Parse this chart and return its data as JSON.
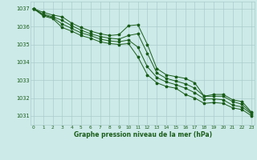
{
  "background_color": "#cceae8",
  "grid_color": "#aacccc",
  "line_color": "#1a5c1a",
  "xlabel": "Graphe pression niveau de la mer (hPa)",
  "xlabel_color": "#1a5c1a",
  "ylabel_color": "#1a5c1a",
  "xlim": [
    -0.3,
    23.3
  ],
  "ylim": [
    1030.5,
    1037.4
  ],
  "yticks": [
    1031,
    1032,
    1033,
    1034,
    1035,
    1036,
    1037
  ],
  "xticks": [
    0,
    1,
    2,
    3,
    4,
    5,
    6,
    7,
    8,
    9,
    10,
    11,
    12,
    13,
    14,
    15,
    16,
    17,
    18,
    19,
    20,
    21,
    22,
    23
  ],
  "series": [
    {
      "x": [
        0,
        1,
        2,
        3,
        4,
        5,
        6,
        7,
        8,
        9,
        10,
        11,
        12,
        13,
        14,
        15,
        16,
        17,
        18,
        19,
        20,
        21,
        22,
        23
      ],
      "y": [
        1037.0,
        1036.8,
        1036.65,
        1036.55,
        1036.2,
        1035.95,
        1035.75,
        1035.6,
        1035.5,
        1035.55,
        1036.05,
        1036.1,
        1035.0,
        1033.65,
        1033.3,
        1033.2,
        1033.1,
        1032.85,
        1032.1,
        1032.2,
        1032.2,
        1031.9,
        1031.8,
        1031.2
      ]
    },
    {
      "x": [
        0,
        1,
        2,
        3,
        4,
        5,
        6,
        7,
        8,
        9,
        10,
        11,
        12,
        13,
        14,
        15,
        16,
        17,
        18,
        19,
        20,
        21,
        22,
        23
      ],
      "y": [
        1037.0,
        1036.7,
        1036.55,
        1036.35,
        1036.05,
        1035.8,
        1035.6,
        1035.45,
        1035.35,
        1035.3,
        1035.5,
        1035.6,
        1034.5,
        1033.4,
        1033.1,
        1032.95,
        1032.8,
        1032.55,
        1032.1,
        1032.1,
        1032.1,
        1031.8,
        1031.65,
        1031.15
      ]
    },
    {
      "x": [
        0,
        1,
        2,
        3,
        4,
        5,
        6,
        7,
        8,
        9,
        10,
        11,
        12,
        13,
        14,
        15,
        16,
        17,
        18,
        19,
        20,
        21,
        22,
        23
      ],
      "y": [
        1037.0,
        1036.65,
        1036.5,
        1036.15,
        1035.9,
        1035.65,
        1035.5,
        1035.3,
        1035.2,
        1035.15,
        1035.25,
        1034.85,
        1033.75,
        1033.15,
        1032.9,
        1032.75,
        1032.55,
        1032.3,
        1031.95,
        1031.95,
        1031.9,
        1031.6,
        1031.5,
        1031.1
      ]
    },
    {
      "x": [
        0,
        1,
        2,
        3,
        4,
        5,
        6,
        7,
        8,
        9,
        10,
        11,
        12,
        13,
        14,
        15,
        16,
        17,
        18,
        19,
        20,
        21,
        22,
        23
      ],
      "y": [
        1037.0,
        1036.6,
        1036.45,
        1035.95,
        1035.75,
        1035.5,
        1035.35,
        1035.15,
        1035.05,
        1035.0,
        1035.05,
        1034.3,
        1033.3,
        1032.85,
        1032.65,
        1032.55,
        1032.2,
        1032.0,
        1031.7,
        1031.75,
        1031.7,
        1031.45,
        1031.35,
        1031.0
      ]
    }
  ]
}
